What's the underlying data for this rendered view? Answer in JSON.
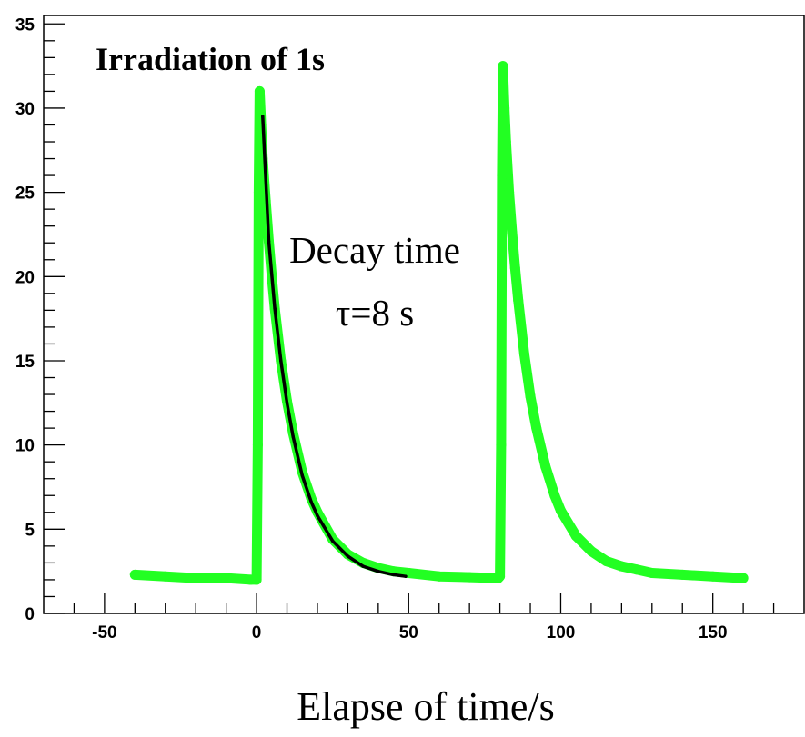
{
  "chart_data": {
    "type": "line",
    "title": "Irradiation of 1s",
    "xlabel": "Elapse of time/s",
    "ylabel": "",
    "xlim": [
      -70,
      180
    ],
    "ylim": [
      0,
      35.5
    ],
    "x_ticks": [
      -50,
      0,
      50,
      100,
      150
    ],
    "y_ticks": [
      0,
      5,
      10,
      15,
      20,
      25,
      30,
      35
    ],
    "grid": false,
    "annotations": [
      "Decay time",
      "τ=8 s"
    ],
    "colors": {
      "data": "#22ff22",
      "fit": "#000000"
    },
    "series": [
      {
        "x": [
          -40,
          -30,
          -20,
          -10,
          -2,
          0,
          0.4,
          0.7,
          1,
          1.5,
          2,
          3,
          4,
          5,
          6,
          8,
          10,
          12,
          15,
          18,
          20,
          25,
          30,
          35,
          40,
          45,
          50,
          60,
          70,
          79.5,
          80,
          80.4,
          80.7,
          81,
          81.5,
          82,
          83,
          84,
          85,
          86,
          88,
          90,
          92,
          95,
          98,
          100,
          105,
          110,
          115,
          120,
          125,
          130,
          140,
          150,
          160
        ],
        "values": [
          2.3,
          2.2,
          2.1,
          2.1,
          2.0,
          2.0,
          10,
          25,
          31,
          29,
          27,
          24.5,
          22.1,
          20,
          18.1,
          15,
          12.6,
          10.7,
          8.4,
          6.8,
          6.0,
          4.4,
          3.5,
          3.0,
          2.7,
          2.5,
          2.4,
          2.2,
          2.15,
          2.1,
          2.2,
          10,
          26,
          32.5,
          30,
          28,
          25,
          22.6,
          20.5,
          18.6,
          15.4,
          12.9,
          11.0,
          8.7,
          7.0,
          6.1,
          4.6,
          3.7,
          3.1,
          2.8,
          2.6,
          2.4,
          2.3,
          2.2,
          2.1
        ]
      },
      {
        "x": [
          2,
          4,
          6,
          8,
          10,
          12,
          15,
          18,
          20,
          25,
          30,
          35,
          40,
          45,
          49
        ],
        "values": [
          29.5,
          22.1,
          18.1,
          15.0,
          12.5,
          10.5,
          8.2,
          6.6,
          5.8,
          4.3,
          3.4,
          2.8,
          2.5,
          2.3,
          2.2
        ]
      }
    ]
  }
}
